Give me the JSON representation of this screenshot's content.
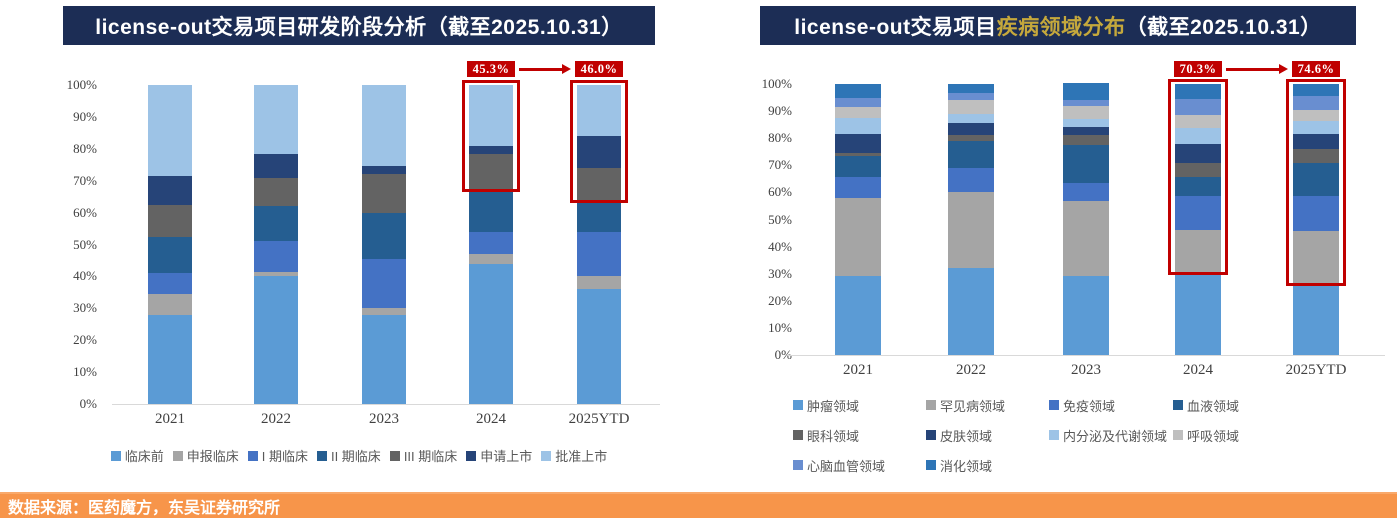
{
  "source_note": "数据来源：医药魔方，东吴证券研究所",
  "colors": {
    "title_bg": "#1C2D55",
    "title_emphasis_gold": "#C5A83C",
    "annotation_red": "#C00000",
    "source_bg": "#F7954A",
    "axis_text": "#404040",
    "legend_text": "#595959"
  },
  "chart_data": [
    {
      "type": "bar",
      "subtype": "stacked-100pct",
      "title": "license-out交易项目研发阶段分析（截至2025.10.31）",
      "title_parts": {
        "prefix": "license-out交易项目",
        "emphasis": "研发阶段分析",
        "suffix": "（截至2025.10.31）"
      },
      "emphasis_color": "#FFFFFF",
      "categories": [
        "2021",
        "2022",
        "2023",
        "2024",
        "2025YTD"
      ],
      "series": [
        {
          "name": "临床前",
          "color": "#5B9BD5",
          "values": [
            28,
            40,
            28,
            44,
            36
          ]
        },
        {
          "name": "申报临床",
          "color": "#A5A5A5",
          "values": [
            6.5,
            1.5,
            2,
            3,
            4
          ]
        },
        {
          "name": "I 期临床",
          "color": "#4472C4",
          "values": [
            6.5,
            9.5,
            15.5,
            7,
            14
          ]
        },
        {
          "name": "II 期临床",
          "color": "#255E91",
          "values": [
            11.5,
            11,
            14.5,
            12.5,
            9
          ]
        },
        {
          "name": "III 期临床",
          "color": "#636363",
          "values": [
            10,
            9,
            12,
            12,
            11
          ]
        },
        {
          "name": "申请上市",
          "color": "#264478",
          "values": [
            9,
            7.5,
            2.5,
            2.5,
            10
          ]
        },
        {
          "name": "批准上市",
          "color": "#9DC3E6",
          "values": [
            28.5,
            21.5,
            25.5,
            19,
            16
          ]
        }
      ],
      "ylim": [
        0,
        100
      ],
      "yticks": [
        "0%",
        "10%",
        "20%",
        "30%",
        "40%",
        "50%",
        "60%",
        "70%",
        "80%",
        "90%",
        "100%"
      ],
      "grid": false,
      "legend_position": "bottom",
      "annotation": {
        "from_label": "45.3%",
        "to_label": "46.0%",
        "highlight_categories": [
          "2024",
          "2025YTD"
        ],
        "box_category_indices": [
          3,
          4
        ],
        "box_bottom_pcts": [
          66.5,
          63
        ]
      }
    },
    {
      "type": "bar",
      "subtype": "stacked-100pct",
      "title": "license-out交易项目疾病领域分布（截至2025.10.31）",
      "title_parts": {
        "prefix": "license-out交易项目",
        "emphasis": "疾病领域分布",
        "suffix": "（截至2025.10.31）"
      },
      "emphasis_color": "#C5A83C",
      "categories": [
        "2021",
        "2022",
        "2023",
        "2024",
        "2025YTD"
      ],
      "series": [
        {
          "name": "肿瘤领域",
          "color": "#5B9BD5",
          "values": [
            29,
            32,
            29,
            29.7,
            25.4
          ]
        },
        {
          "name": "罕见病领域",
          "color": "#A5A5A5",
          "values": [
            29,
            28,
            28,
            16.6,
            20.4
          ]
        },
        {
          "name": "免疫领域",
          "color": "#4472C4",
          "values": [
            7.5,
            9,
            6.5,
            12.3,
            12.8
          ]
        },
        {
          "name": "血液领域",
          "color": "#255E91",
          "values": [
            8,
            10,
            14,
            7.1,
            12.1
          ]
        },
        {
          "name": "眼科领域",
          "color": "#636363",
          "values": [
            1,
            2,
            3.5,
            5.2,
            5.2
          ]
        },
        {
          "name": "皮肤领域",
          "color": "#264478",
          "values": [
            7,
            4.5,
            3,
            6.8,
            5.7
          ]
        },
        {
          "name": "内分泌及代谢领域",
          "color": "#9DC3E6",
          "values": [
            6,
            3.5,
            3,
            6.2,
            4.6
          ]
        },
        {
          "name": "呼吸领域",
          "color": "#BFBFBF",
          "values": [
            4,
            5,
            5,
            4.6,
            4.3
          ]
        },
        {
          "name": "心脑血管领域",
          "color": "#698ED0",
          "values": [
            3.5,
            2.5,
            2,
            6.0,
            5.1
          ]
        },
        {
          "name": "消化领域",
          "color": "#2E75B6",
          "values": [
            5,
            3.5,
            6.5,
            5.5,
            4.4
          ]
        }
      ],
      "ylim": [
        0,
        100
      ],
      "yticks": [
        "0%",
        "10%",
        "20%",
        "30%",
        "40%",
        "50%",
        "60%",
        "70%",
        "80%",
        "90%",
        "100%"
      ],
      "grid": false,
      "legend_position": "bottom",
      "annotation": {
        "from_label": "70.3%",
        "to_label": "74.6%",
        "highlight_categories": [
          "2024",
          "2025YTD"
        ],
        "box_category_indices": [
          3,
          4
        ],
        "box_bottom_pcts": [
          29.7,
          25.4
        ]
      }
    }
  ]
}
